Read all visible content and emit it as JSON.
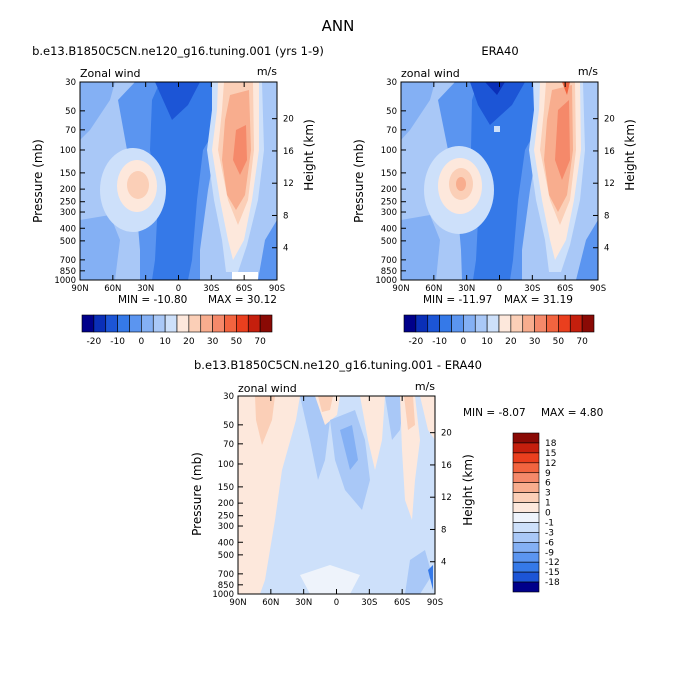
{
  "page_title": "ANN",
  "chart_data": [
    {
      "type": "heatmap",
      "id": "model",
      "title": "b.e13.B1850C5CN.ne120_g16.tuning.001 (yrs 1-9)",
      "left_label": "Zonal wind",
      "right_label": "m/s",
      "xlabel": "",
      "ylabel": "Pressure (mb)",
      "ylabel_right": "Height (km)",
      "x_ticks": [
        "90N",
        "60N",
        "30N",
        "0",
        "30S",
        "60S",
        "90S"
      ],
      "y_ticks": [
        "30",
        "50",
        "70",
        "100",
        "150",
        "200",
        "250",
        "300",
        "400",
        "500",
        "700",
        "850",
        "1000"
      ],
      "height_ticks": [
        "20",
        "16",
        "12",
        "8",
        "4"
      ],
      "min_text": "MIN = -10.80",
      "max_text": "MAX = 30.12",
      "min": -10.8,
      "max": 30.12
    },
    {
      "type": "heatmap",
      "id": "obs",
      "title": "ERA40",
      "left_label": "zonal wind",
      "right_label": "m/s",
      "xlabel": "",
      "ylabel": "Pressure (mb)",
      "ylabel_right": "Height (km)",
      "x_ticks": [
        "90N",
        "60N",
        "30N",
        "0",
        "30S",
        "60S",
        "90S"
      ],
      "y_ticks": [
        "30",
        "50",
        "70",
        "100",
        "150",
        "200",
        "250",
        "300",
        "400",
        "500",
        "700",
        "850",
        "1000"
      ],
      "height_ticks": [
        "20",
        "16",
        "12",
        "8",
        "4"
      ],
      "min_text": "MIN = -11.97",
      "max_text": "MAX = 31.19",
      "min": -11.97,
      "max": 31.19
    },
    {
      "type": "heatmap",
      "id": "diff",
      "title": "b.e13.B1850C5CN.ne120_g16.tuning.001 - ERA40",
      "left_label": "zonal wind",
      "right_label": "m/s",
      "xlabel": "",
      "ylabel": "Pressure (mb)",
      "ylabel_right": "Height (km)",
      "x_ticks": [
        "90N",
        "60N",
        "30N",
        "0",
        "30S",
        "60S",
        "90S"
      ],
      "y_ticks": [
        "30",
        "50",
        "70",
        "100",
        "150",
        "200",
        "250",
        "300",
        "400",
        "500",
        "700",
        "850",
        "1000"
      ],
      "height_ticks": [
        "20",
        "16",
        "12",
        "8",
        "4"
      ],
      "min_text": "MIN = -8.07",
      "max_text": "MAX = 4.80",
      "min": -8.07,
      "max": 4.8
    }
  ],
  "colorbar_main": {
    "labels": [
      "-20",
      "-10",
      "0",
      "10",
      "20",
      "30",
      "50",
      "70"
    ],
    "colors": [
      "#00008a",
      "#0a2fb8",
      "#1c55d6",
      "#3579e8",
      "#5b95f0",
      "#84b0f4",
      "#a9c8f7",
      "#cde0fa",
      "#fde8dc",
      "#fbcfb7",
      "#f8ad8e",
      "#f5896a",
      "#f2643f",
      "#ea3f1e",
      "#c51f0d",
      "#8a0a05"
    ]
  },
  "colorbar_diff": {
    "labels": [
      "18",
      "15",
      "12",
      "9",
      "6",
      "3",
      "1",
      "0",
      "-1",
      "-3",
      "-6",
      "-9",
      "-12",
      "-15",
      "-18"
    ],
    "colors": [
      "#8a0a05",
      "#c51f0d",
      "#ea3f1e",
      "#f2643f",
      "#f5896a",
      "#f8ad8e",
      "#fbcfb7",
      "#fde8dc",
      "#eef3fb",
      "#cde0fa",
      "#a9c8f7",
      "#84b0f4",
      "#5b95f0",
      "#3579e8",
      "#1c55d6",
      "#00008a"
    ]
  }
}
